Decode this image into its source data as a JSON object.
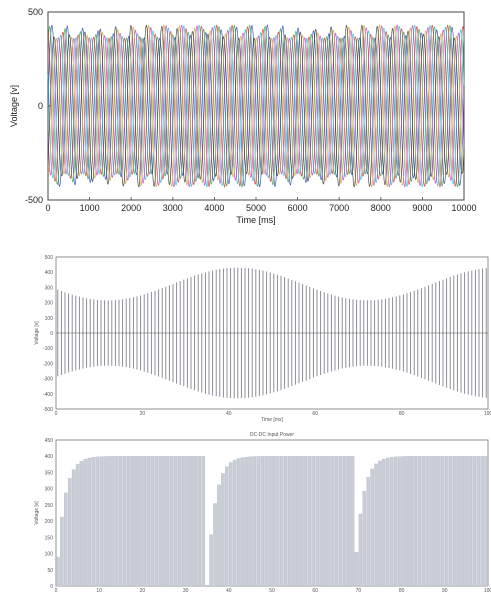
{
  "chart_data": [
    {
      "type": "line",
      "title": "",
      "xlabel": "Time [ms]",
      "ylabel": "Voltage [v]",
      "xlim": [
        0,
        10000
      ],
      "ylim": [
        -500,
        500
      ],
      "xticks": [
        "0",
        "1000",
        "2000",
        "3000",
        "4000",
        "5000",
        "6000",
        "7000",
        "8000",
        "9000",
        "10000"
      ],
      "yticks": [
        "500",
        "0",
        "-500"
      ],
      "grid": false,
      "legend": "none",
      "series_colors": [
        "#1f3fbf",
        "#2e9b3a",
        "#d62728",
        "#17becf",
        "#c531c5",
        "#c9a227",
        "#333333"
      ],
      "description_values": {
        "amplitude_max": 430,
        "amplitude_min": 360,
        "carrier_period_ms": 370,
        "envelope_period_ms": 5200
      }
    },
    {
      "type": "bar",
      "title": "",
      "xlabel": "Time [ms]",
      "ylabel": "Voltage [v]",
      "xlim": [
        0,
        100
      ],
      "ylim": [
        -500,
        500
      ],
      "xticks": [
        "0",
        "20",
        "40",
        "60",
        "80",
        "100"
      ],
      "yticks": [
        "500",
        "400",
        "300",
        "200",
        "100",
        "0",
        "-100",
        "-200",
        "-300",
        "-400",
        "-500"
      ],
      "grid": false,
      "bar_count": 120,
      "envelope": {
        "max": 430,
        "min": 215,
        "period": 60,
        "peak_at": 42
      }
    },
    {
      "type": "bar",
      "title": "DC-DC Input Power",
      "xlabel": "",
      "ylabel": "Voltage [v]",
      "xlim": [
        0,
        100
      ],
      "ylim": [
        0,
        450
      ],
      "xticks": [
        "0",
        "10",
        "20",
        "30",
        "40",
        "50",
        "60",
        "70",
        "80",
        "90",
        "100"
      ],
      "yticks": [
        "450",
        "400",
        "350",
        "300",
        "250",
        "200",
        "150",
        "100",
        "50",
        "0"
      ],
      "grid": false,
      "bar_count": 110,
      "plateau": 400,
      "resets_at": [
        0,
        35,
        69
      ]
    }
  ]
}
